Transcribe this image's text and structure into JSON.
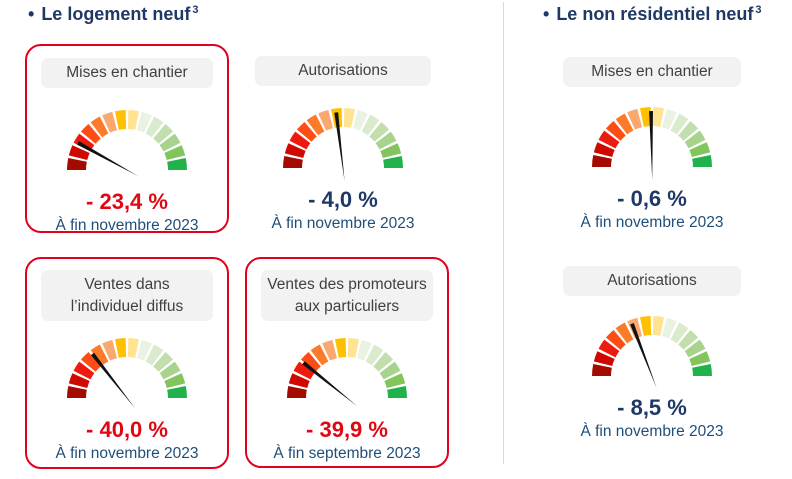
{
  "colors": {
    "accent_navy": "#1F3864",
    "date_blue": "#1F4E79",
    "negative_red": "#E20613",
    "card_border_red": "#E2001A",
    "pill_bg": "#F2F2F2",
    "pill_text": "#404040",
    "divider_gray": "#D9D9D9",
    "needle_black": "#111111"
  },
  "sections": [
    {
      "bullet": "•",
      "title": "Le logement neuf",
      "footnote_marker": "3"
    },
    {
      "bullet": "•",
      "title": "Le non résidentiel neuf",
      "footnote_marker": "3"
    }
  ],
  "gauge_scale": {
    "arc_degrees": 180,
    "segment_count": 14,
    "segment_colors": [
      "#A30B00",
      "#CE0A00",
      "#EF1A0E",
      "#FB4D14",
      "#FC7B2B",
      "#FBA870",
      "#FFC000",
      "#FFE391",
      "#EAF2E2",
      "#D9EACD",
      "#C2DEAC",
      "#A7D38C",
      "#82C55C",
      "#21B24C"
    ]
  },
  "chart_data": [
    {
      "type": "gauge",
      "section": "Le logement neuf",
      "label": "Mises en chantier",
      "value_pct": -23.4,
      "value_display": "- 23,4 %",
      "as_of": "À fin novembre 2023",
      "needle_angle_deg": 151,
      "value_style": "red",
      "highlighted_border": true
    },
    {
      "type": "gauge",
      "section": "Le logement neuf",
      "label": "Autorisations",
      "value_pct": -4.0,
      "value_display": "- 4,0 %",
      "as_of": "À fin novembre 2023",
      "needle_angle_deg": 97,
      "value_style": "navy",
      "highlighted_border": false
    },
    {
      "type": "gauge",
      "section": "Le logement neuf",
      "label": "Ventes dans\nl’individuel diffus",
      "value_pct": -40.0,
      "value_display": "- 40,0 %",
      "as_of": "À fin novembre 2023",
      "needle_angle_deg": 128,
      "value_style": "red",
      "highlighted_border": true
    },
    {
      "type": "gauge",
      "section": "Le logement neuf",
      "label": "Ventes des promoteurs\naux particuliers",
      "value_pct": -39.9,
      "value_display": "- 39,9 %",
      "as_of": "À fin septembre 2023",
      "needle_angle_deg": 141,
      "value_style": "red",
      "highlighted_border": true
    },
    {
      "type": "gauge",
      "section": "Le non résidentiel neuf",
      "label": "Mises en chantier",
      "value_pct": -0.6,
      "value_display": "- 0,6 %",
      "as_of": "À fin novembre 2023",
      "needle_angle_deg": 91,
      "value_style": "navy",
      "highlighted_border": false
    },
    {
      "type": "gauge",
      "section": "Le non résidentiel neuf",
      "label": "Autorisations",
      "value_pct": -8.5,
      "value_display": "- 8,5 %",
      "as_of": "À fin novembre 2023",
      "needle_angle_deg": 111,
      "value_style": "navy",
      "highlighted_border": false
    }
  ]
}
